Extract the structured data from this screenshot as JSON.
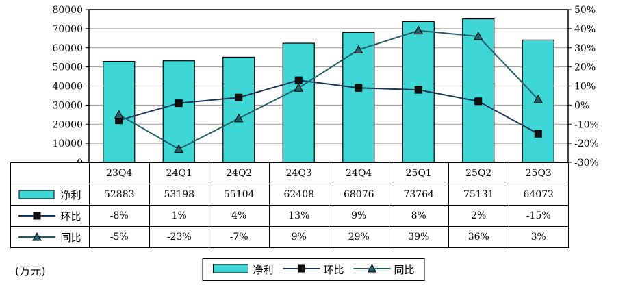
{
  "unit_label": "(万元)",
  "colors": {
    "bar_fill": "#3fd6d6",
    "bar_stroke": "#000000",
    "grid": "#9a9a9a",
    "hb_line": "#16365c",
    "hb_marker": "#111111",
    "tb_line": "#1d5f6b",
    "tb_marker": "#1d5f6b"
  },
  "chart_data": {
    "type": "bar",
    "subtype": "bar+line combo, dual axis",
    "categories": [
      "23Q4",
      "24Q1",
      "24Q2",
      "24Q3",
      "24Q4",
      "25Q1",
      "25Q2",
      "25Q3"
    ],
    "series": [
      {
        "name": "净利",
        "type": "bar",
        "axis": "left",
        "values": [
          52883,
          53198,
          55104,
          62408,
          68076,
          73764,
          75131,
          64072
        ]
      },
      {
        "name": "环比",
        "type": "line",
        "axis": "right",
        "marker": "square",
        "values_pct": [
          -8,
          1,
          4,
          13,
          9,
          8,
          2,
          -15
        ],
        "labels": [
          "-8%",
          "1%",
          "4%",
          "13%",
          "9%",
          "8%",
          "2%",
          "-15%"
        ]
      },
      {
        "name": "同比",
        "type": "line",
        "axis": "right",
        "marker": "triangle",
        "values_pct": [
          -5,
          -23,
          -7,
          9,
          29,
          39,
          36,
          3
        ],
        "labels": [
          "-5%",
          "-23%",
          "-7%",
          "9%",
          "29%",
          "39%",
          "36%",
          "3%"
        ]
      }
    ],
    "left_axis": {
      "min": 0,
      "max": 80000,
      "step": 10000,
      "tick_labels": [
        "0",
        "10000",
        "20000",
        "30000",
        "40000",
        "50000",
        "60000",
        "70000",
        "80000"
      ]
    },
    "right_axis": {
      "min": -30,
      "max": 50,
      "step": 10,
      "tick_labels": [
        "-30%",
        "-20%",
        "-10%",
        "0%",
        "10%",
        "20%",
        "30%",
        "40%",
        "50%"
      ]
    },
    "grid": true,
    "legend_position": "bottom",
    "data_table_shown": true
  }
}
